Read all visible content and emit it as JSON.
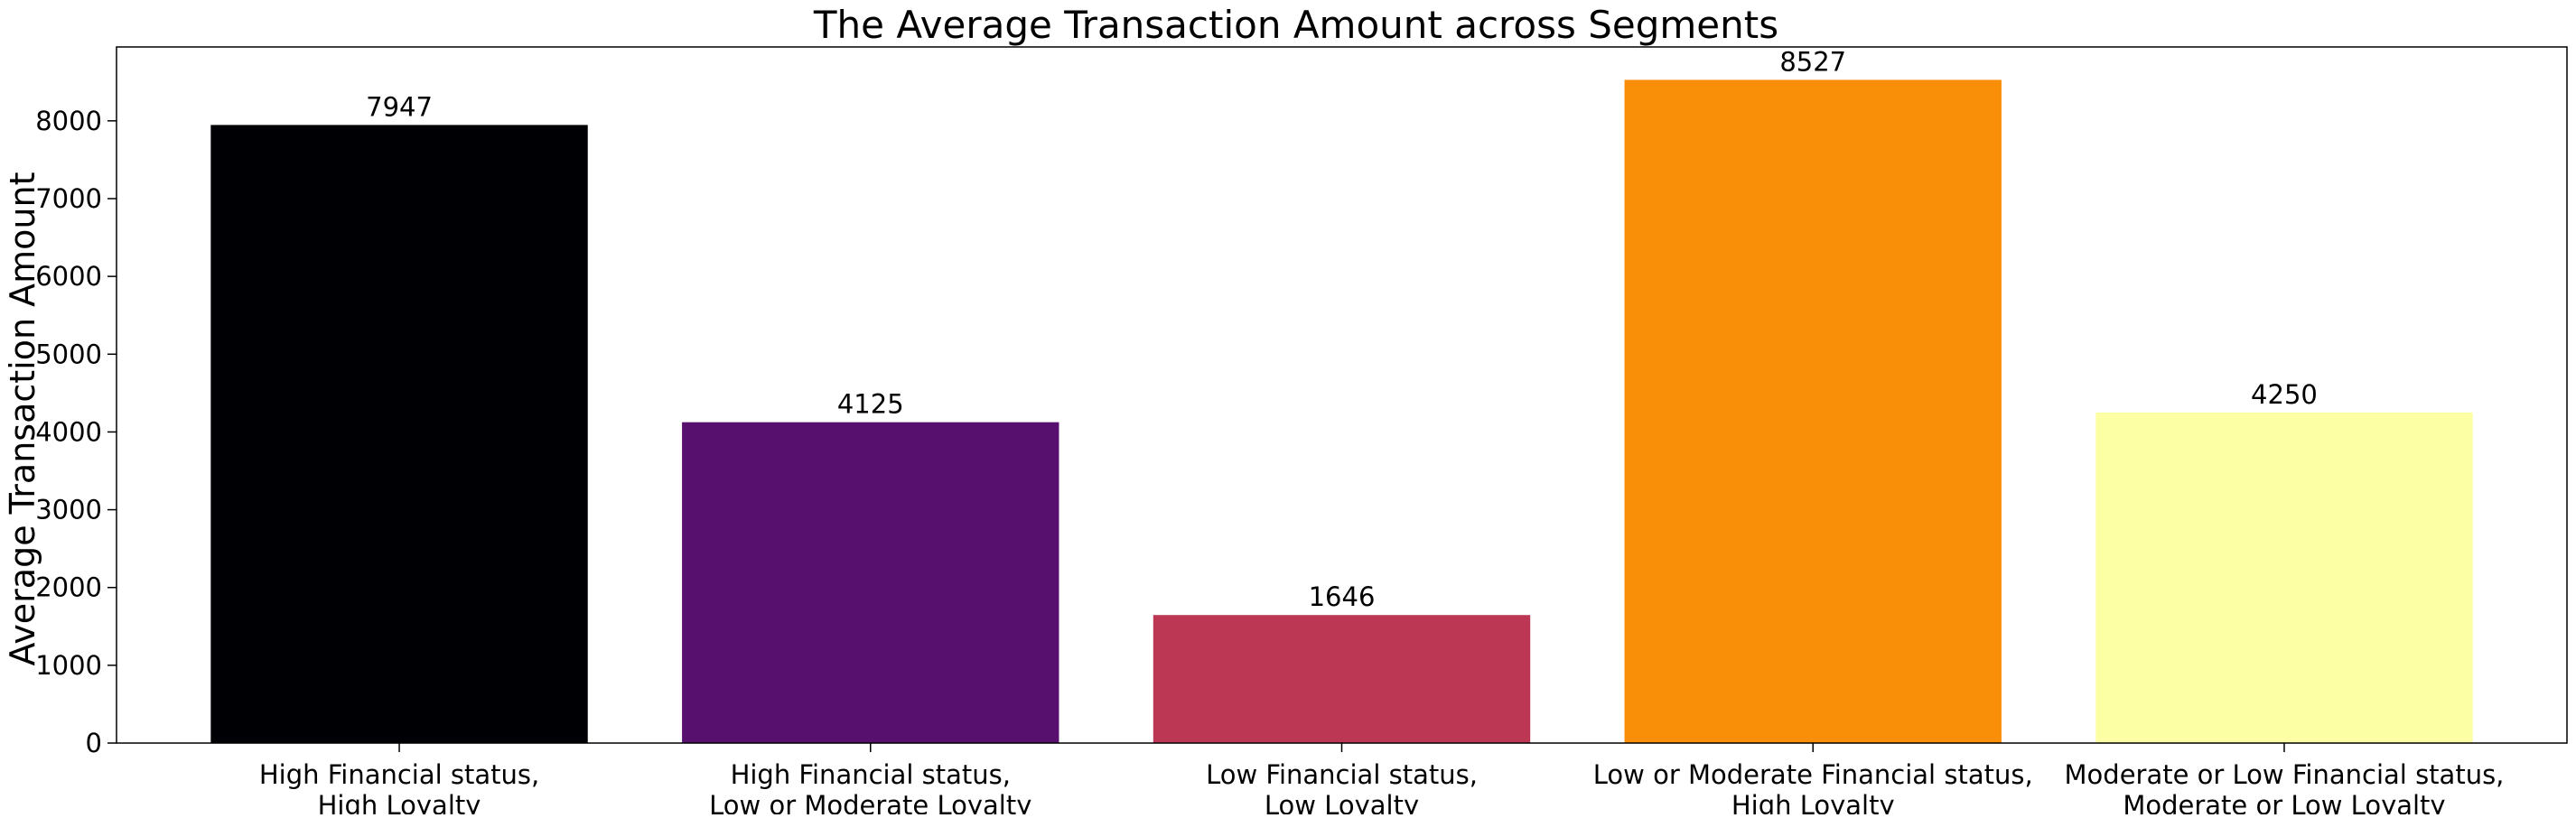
{
  "chart_data": {
    "type": "bar",
    "title": "The Average Transaction Amount across Segments",
    "xlabel": "",
    "ylabel": "Average Transaction Amount",
    "categories": [
      [
        "High Financial status,",
        "High Loyalty"
      ],
      [
        "High Financial status,",
        "Low or Moderate Loyalty"
      ],
      [
        "Low Financial status,",
        "Low Loyalty"
      ],
      [
        "Low or Moderate Financial status,",
        "High Loyalty"
      ],
      [
        "Moderate or Low Financial status,",
        "Moderate or Low Loyalty"
      ]
    ],
    "values": [
      7947,
      4125,
      1646,
      8527,
      4250
    ],
    "value_labels": [
      "7947",
      "4125",
      "1646",
      "8527",
      "4250"
    ],
    "colors": [
      "#000004",
      "#57106e",
      "#bc3754",
      "#f98e09",
      "#fcffa4"
    ],
    "ylim": [
      0,
      8950
    ],
    "yticks": [
      0,
      1000,
      2000,
      3000,
      4000,
      5000,
      6000,
      7000,
      8000
    ],
    "ytick_labels": [
      "0",
      "1000",
      "2000",
      "3000",
      "4000",
      "5000",
      "6000",
      "7000",
      "8000"
    ],
    "grid": false,
    "legend": "none"
  }
}
